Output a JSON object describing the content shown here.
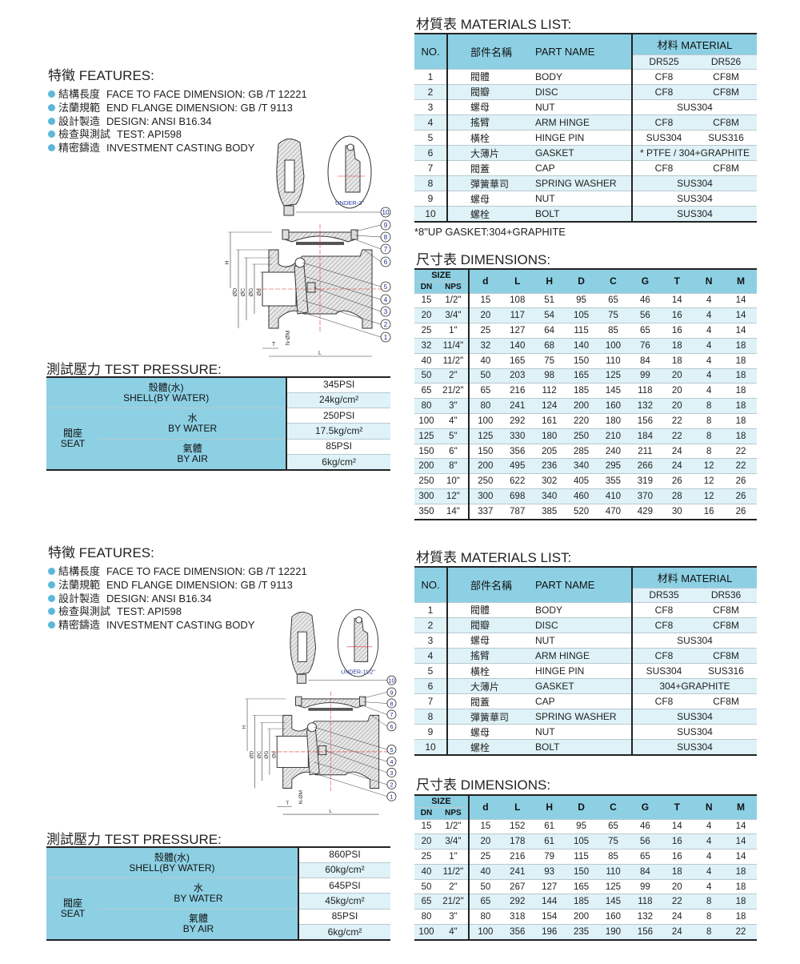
{
  "colors": {
    "header": "#8dd0e4",
    "row_alt": "#def2f8",
    "bullet": "#5bb8d8",
    "callout": "#1a2a8a"
  },
  "sections": [
    {
      "features": {
        "title": "特徵 FEATURES:",
        "items": [
          {
            "cn": "結構長度",
            "en": "FACE TO FACE DIMENSION:  GB /T 12221"
          },
          {
            "cn": "法蘭規範",
            "en": "END FLANGE DIMENSION: GB /T 9113"
          },
          {
            "cn": "設計製造",
            "en": "DESIGN: ANSI B16.34"
          },
          {
            "cn": "檢查與測試",
            "en": "TEST: API598"
          },
          {
            "cn": "精密鑄造",
            "en": "INVESTMENT CASTING BODY"
          }
        ]
      },
      "drawing": {
        "detail_label": "UNDER-3\"",
        "callouts": [
          "10",
          "9",
          "8",
          "7",
          "6",
          "5",
          "4",
          "3",
          "2",
          "1"
        ],
        "dims": {
          "H": "H",
          "D": "ØD",
          "C": "ØC",
          "G": "ØG",
          "d": "Ød",
          "T": "T",
          "NM": "N-ØM",
          "L": "L"
        }
      },
      "test_pressure": {
        "title": "測試壓力 TEST PRESSURE:",
        "shell_cn": "殼體(水)",
        "shell_en": "SHELL(BY WATER)",
        "seat_cn": "閥座",
        "seat_en": "SEAT",
        "water_cn": "水",
        "water_en": "BY WATER",
        "air_cn": "氣體",
        "air_en": "BY AIR",
        "shell_psi": "345PSI",
        "shell_kg": "24kg/cm²",
        "water_psi": "250PSI",
        "water_kg": "17.5kg/cm²",
        "air_psi": "85PSI",
        "air_kg": "6kg/cm²"
      },
      "materials": {
        "title": "材質表 MATERIALS LIST:",
        "headers": {
          "no": "NO.",
          "part_cn": "部件名稱",
          "part_en": "PART NAME",
          "material": "材料  MATERIAL",
          "mat_a": "DR525",
          "mat_b": "DR526"
        },
        "rows": [
          {
            "no": "1",
            "cn": "閥體",
            "en": "BODY",
            "a": "CF8",
            "b": "CF8M"
          },
          {
            "no": "2",
            "cn": "閥瓣",
            "en": "DISC",
            "a": "CF8",
            "b": "CF8M"
          },
          {
            "no": "3",
            "cn": "螺母",
            "en": "NUT",
            "a": "SUS304"
          },
          {
            "no": "4",
            "cn": "搖臂",
            "en": "ARM HINGE",
            "a": "CF8",
            "b": "CF8M"
          },
          {
            "no": "5",
            "cn": "橫栓",
            "en": "HINGE PIN",
            "a": "SUS304",
            "b": "SUS316"
          },
          {
            "no": "6",
            "cn": "大薄片",
            "en": "GASKET",
            "a": "* PTFE / 304+GRAPHITE"
          },
          {
            "no": "7",
            "cn": "閥蓋",
            "en": "CAP",
            "a": "CF8",
            "b": "CF8M"
          },
          {
            "no": "8",
            "cn": "彈簧華司",
            "en": "SPRING WASHER",
            "a": "SUS304"
          },
          {
            "no": "9",
            "cn": "螺母",
            "en": "NUT",
            "a": "SUS304"
          },
          {
            "no": "10",
            "cn": "螺栓",
            "en": "BOLT",
            "a": "SUS304"
          }
        ],
        "footnote": "*8\"UP GASKET:304+GRAPHITE"
      },
      "dimensions": {
        "title": "尺寸表 DIMENSIONS:",
        "size_label": "SIZE",
        "columns": [
          "DN",
          "NPS",
          "d",
          "L",
          "H",
          "D",
          "C",
          "G",
          "T",
          "N",
          "M"
        ],
        "rows": [
          [
            "15",
            "1/2\"",
            "15",
            "108",
            "51",
            "95",
            "65",
            "46",
            "14",
            "4",
            "14"
          ],
          [
            "20",
            "3/4\"",
            "20",
            "117",
            "54",
            "105",
            "75",
            "56",
            "16",
            "4",
            "14"
          ],
          [
            "25",
            "1\"",
            "25",
            "127",
            "64",
            "115",
            "85",
            "65",
            "16",
            "4",
            "14"
          ],
          [
            "32",
            "11/4\"",
            "32",
            "140",
            "68",
            "140",
            "100",
            "76",
            "18",
            "4",
            "18"
          ],
          [
            "40",
            "11/2\"",
            "40",
            "165",
            "75",
            "150",
            "110",
            "84",
            "18",
            "4",
            "18"
          ],
          [
            "50",
            "2\"",
            "50",
            "203",
            "98",
            "165",
            "125",
            "99",
            "20",
            "4",
            "18"
          ],
          [
            "65",
            "21/2\"",
            "65",
            "216",
            "112",
            "185",
            "145",
            "118",
            "20",
            "4",
            "18"
          ],
          [
            "80",
            "3\"",
            "80",
            "241",
            "124",
            "200",
            "160",
            "132",
            "20",
            "8",
            "18"
          ],
          [
            "100",
            "4\"",
            "100",
            "292",
            "161",
            "220",
            "180",
            "156",
            "22",
            "8",
            "18"
          ],
          [
            "125",
            "5\"",
            "125",
            "330",
            "180",
            "250",
            "210",
            "184",
            "22",
            "8",
            "18"
          ],
          [
            "150",
            "6\"",
            "150",
            "356",
            "205",
            "285",
            "240",
            "211",
            "24",
            "8",
            "22"
          ],
          [
            "200",
            "8\"",
            "200",
            "495",
            "236",
            "340",
            "295",
            "266",
            "24",
            "12",
            "22"
          ],
          [
            "250",
            "10\"",
            "250",
            "622",
            "302",
            "405",
            "355",
            "319",
            "26",
            "12",
            "26"
          ],
          [
            "300",
            "12\"",
            "300",
            "698",
            "340",
            "460",
            "410",
            "370",
            "28",
            "12",
            "26"
          ],
          [
            "350",
            "14\"",
            "337",
            "787",
            "385",
            "520",
            "470",
            "429",
            "30",
            "16",
            "26"
          ]
        ]
      }
    },
    {
      "features": {
        "title": "特徵 FEATURES:",
        "items": [
          {
            "cn": "結構長度",
            "en": "FACE TO FACE DIMENSION:  GB /T 12221"
          },
          {
            "cn": "法蘭規範",
            "en": "END FLANGE DIMENSION: GB /T 9113"
          },
          {
            "cn": "設計製造",
            "en": "DESIGN: ANSI B16.34"
          },
          {
            "cn": "檢查與測試",
            "en": "TEST: API598"
          },
          {
            "cn": "精密鑄造",
            "en": "INVESTMENT CASTING BODY"
          }
        ]
      },
      "drawing": {
        "detail_label": "UNDER-11/2\"",
        "callouts": [
          "10",
          "9",
          "8",
          "7",
          "6",
          "5",
          "4",
          "3",
          "2",
          "1"
        ],
        "dims": {
          "H": "H",
          "D": "ØD",
          "C": "ØC",
          "G": "ØG",
          "d": "Ød",
          "T": "T",
          "NM": "N-ØM",
          "L": "L"
        }
      },
      "test_pressure": {
        "title": "測試壓力 TEST PRESSURE:",
        "shell_cn": "殼體(水)",
        "shell_en": "SHELL(BY WATER)",
        "seat_cn": "閥座",
        "seat_en": "SEAT",
        "water_cn": "水",
        "water_en": "BY WATER",
        "air_cn": "氣體",
        "air_en": "BY AIR",
        "shell_psi": "860PSI",
        "shell_kg": "60kg/cm²",
        "water_psi": "645PSI",
        "water_kg": "45kg/cm²",
        "air_psi": "85PSI",
        "air_kg": "6kg/cm²"
      },
      "materials": {
        "title": "材質表 MATERIALS LIST:",
        "headers": {
          "no": "NO.",
          "part_cn": "部件名稱",
          "part_en": "PART NAME",
          "material": "材料  MATERIAL",
          "mat_a": "DR535",
          "mat_b": "DR536"
        },
        "rows": [
          {
            "no": "1",
            "cn": "閥體",
            "en": "BODY",
            "a": "CF8",
            "b": "CF8M"
          },
          {
            "no": "2",
            "cn": "閥瓣",
            "en": "DISC",
            "a": "CF8",
            "b": "CF8M"
          },
          {
            "no": "3",
            "cn": "螺母",
            "en": "NUT",
            "a": "SUS304"
          },
          {
            "no": "4",
            "cn": "搖臂",
            "en": "ARM HINGE",
            "a": "CF8",
            "b": "CF8M"
          },
          {
            "no": "5",
            "cn": "橫栓",
            "en": "HINGE PIN",
            "a": "SUS304",
            "b": "SUS316"
          },
          {
            "no": "6",
            "cn": "大薄片",
            "en": "GASKET",
            "a": "304+GRAPHITE"
          },
          {
            "no": "7",
            "cn": "閥蓋",
            "en": "CAP",
            "a": "CF8",
            "b": "CF8M"
          },
          {
            "no": "8",
            "cn": "彈簧華司",
            "en": "SPRING WASHER",
            "a": "SUS304"
          },
          {
            "no": "9",
            "cn": "螺母",
            "en": "NUT",
            "a": "SUS304"
          },
          {
            "no": "10",
            "cn": "螺栓",
            "en": "BOLT",
            "a": "SUS304"
          }
        ]
      },
      "dimensions": {
        "title": "尺寸表 DIMENSIONS:",
        "size_label": "SIZE",
        "columns": [
          "DN",
          "NPS",
          "d",
          "L",
          "H",
          "D",
          "C",
          "G",
          "T",
          "N",
          "M"
        ],
        "rows": [
          [
            "15",
            "1/2\"",
            "15",
            "152",
            "61",
            "95",
            "65",
            "46",
            "14",
            "4",
            "14"
          ],
          [
            "20",
            "3/4\"",
            "20",
            "178",
            "61",
            "105",
            "75",
            "56",
            "16",
            "4",
            "14"
          ],
          [
            "25",
            "1\"",
            "25",
            "216",
            "79",
            "115",
            "85",
            "65",
            "16",
            "4",
            "14"
          ],
          [
            "40",
            "11/2\"",
            "40",
            "241",
            "93",
            "150",
            "110",
            "84",
            "18",
            "4",
            "18"
          ],
          [
            "50",
            "2\"",
            "50",
            "267",
            "127",
            "165",
            "125",
            "99",
            "20",
            "4",
            "18"
          ],
          [
            "65",
            "21/2\"",
            "65",
            "292",
            "144",
            "185",
            "145",
            "118",
            "22",
            "8",
            "18"
          ],
          [
            "80",
            "3\"",
            "80",
            "318",
            "154",
            "200",
            "160",
            "132",
            "24",
            "8",
            "18"
          ],
          [
            "100",
            "4\"",
            "100",
            "356",
            "196",
            "235",
            "190",
            "156",
            "24",
            "8",
            "22"
          ]
        ]
      }
    }
  ]
}
